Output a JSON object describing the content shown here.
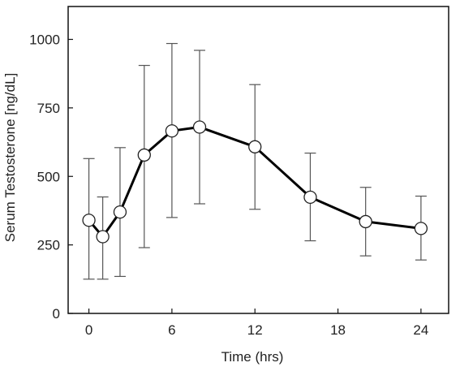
{
  "chart_data": {
    "type": "line",
    "title": "",
    "xlabel": "Time (hrs)",
    "ylabel": "Serum Testosterone [ng/dL]",
    "xlim": [
      -1.5,
      26
    ],
    "ylim": [
      0,
      1120
    ],
    "xticks": [
      0,
      6,
      12,
      18,
      24
    ],
    "yticks": [
      0,
      250,
      500,
      750,
      1000
    ],
    "grid": false,
    "legend": "none",
    "series": [
      {
        "x": [
          0,
          1,
          2.25,
          4,
          6,
          8,
          12,
          16,
          20,
          24
        ],
        "y": [
          340,
          280,
          370,
          578,
          666,
          680,
          608,
          424,
          335,
          310
        ],
        "err_low": [
          125,
          125,
          135,
          240,
          350,
          400,
          380,
          265,
          210,
          195
        ],
        "err_high": [
          565,
          425,
          605,
          905,
          985,
          960,
          835,
          585,
          460,
          428
        ],
        "marker": "open-circle"
      }
    ],
    "colors": {
      "line": "#000000",
      "errorbar": "#555555",
      "axis": "#111111"
    }
  }
}
